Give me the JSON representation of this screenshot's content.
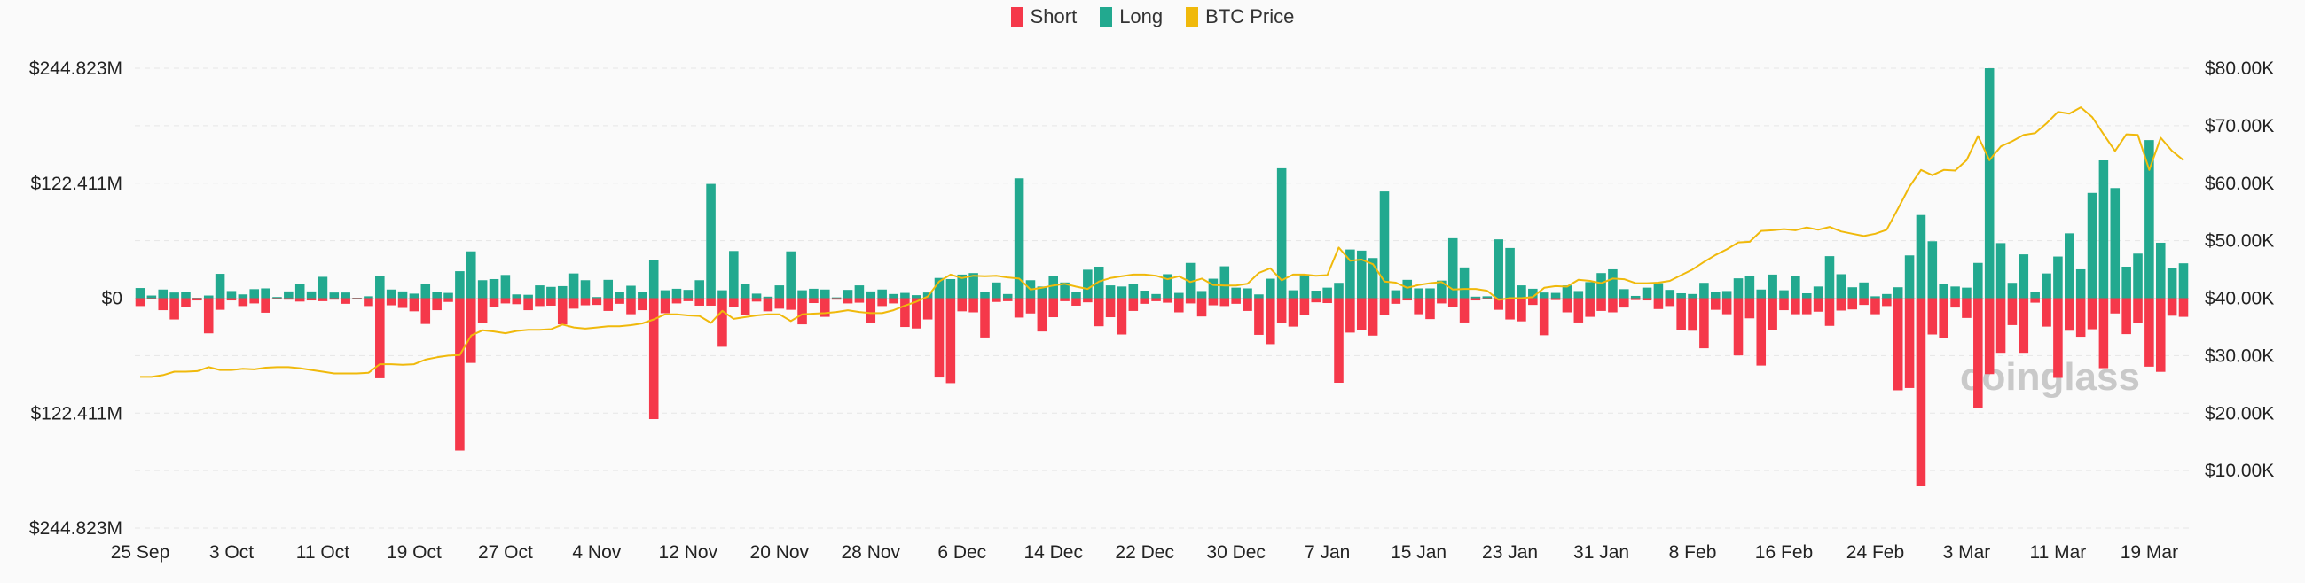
{
  "legend": [
    {
      "label": "Short",
      "color": "#f5384a"
    },
    {
      "label": "Long",
      "color": "#22a98f"
    },
    {
      "label": "BTC Price",
      "color": "#f0b90b"
    }
  ],
  "watermark": "coinglass",
  "chart_data": {
    "type": "bar",
    "title": "",
    "left_axis": {
      "labels": [
        "$244.823M",
        "$122.411M",
        "$0",
        "$122.411M",
        "$244.823M"
      ],
      "range": [
        -244.823,
        244.823
      ],
      "unit": "USD millions"
    },
    "right_axis": {
      "labels": [
        "$80.00K",
        "$70.00K",
        "$60.00K",
        "$50.00K",
        "$40.00K",
        "$30.00K",
        "$20.00K",
        "$10.00K"
      ],
      "range": [
        0,
        80
      ],
      "unit": "USD thousands"
    },
    "x_tick_labels": [
      "25 Sep",
      "3 Oct",
      "11 Oct",
      "19 Oct",
      "27 Oct",
      "4 Nov",
      "12 Nov",
      "20 Nov",
      "28 Nov",
      "6 Dec",
      "14 Dec",
      "22 Dec",
      "30 Dec",
      "7 Jan",
      "15 Jan",
      "23 Jan",
      "31 Jan",
      "8 Feb",
      "16 Feb",
      "24 Feb",
      "3 Mar",
      "11 Mar",
      "19 Mar"
    ],
    "x_tick_every_days": 8,
    "first_day": "25 Sep",
    "grid": true,
    "legend_position": "top-center",
    "series": [
      {
        "name": "Long",
        "axis": "left",
        "values": [
          10.8,
          2.8,
          9.2,
          6,
          6.4,
          0.4,
          2.8,
          25.9,
          7.6,
          4,
          9.6,
          10.4,
          1.2,
          7.2,
          15.5,
          7.2,
          22.7,
          6,
          6,
          0.4,
          2,
          23.5,
          9.2,
          7.2,
          4.8,
          14.7,
          6.4,
          5.6,
          28.7,
          49.8,
          19.1,
          20.3,
          24.7,
          4,
          3.6,
          13.6,
          12,
          12.8,
          26.3,
          19.1,
          1.2,
          19.5,
          6.4,
          13.2,
          6.8,
          40.3,
          8.4,
          10,
          8.8,
          19.1,
          121.6,
          8.4,
          50.2,
          15.1,
          4.8,
          1.6,
          13.6,
          49.8,
          8.4,
          10,
          9.2,
          0.8,
          8.8,
          13.6,
          7.2,
          9.2,
          4.4,
          5.6,
          3.2,
          6,
          21.5,
          20.3,
          25.1,
          26.7,
          6.4,
          16.7,
          4.4,
          127.6,
          19.1,
          12.4,
          23.9,
          16.7,
          6.4,
          30.3,
          33.5,
          13.6,
          12.4,
          15.1,
          8,
          4.4,
          25.5,
          5.6,
          37.5,
          7.6,
          20.7,
          33.9,
          11.2,
          10.4,
          4,
          20.7,
          138.3,
          8.4,
          25.5,
          8,
          11.2,
          16.3,
          51.8,
          50.6,
          42.7,
          113.6,
          8.4,
          19.5,
          10.4,
          10.4,
          18.7,
          63.8,
          32.7,
          1.6,
          2,
          62.6,
          53.4,
          13.6,
          10,
          6,
          5.6,
          13.6,
          7.6,
          17.1,
          26.7,
          30.7,
          9.6,
          2.4,
          11.2,
          15.9,
          8.8,
          5.2,
          4.4,
          16.3,
          6.8,
          7.6,
          21.1,
          23.5,
          9.2,
          25.1,
          8.4,
          23.5,
          5.2,
          12.4,
          44.7,
          25.5,
          11.6,
          16.7,
          2,
          4.4,
          11.6,
          45.5,
          88.5,
          60.6,
          14.8,
          12.4,
          11.2,
          37.5,
          244.8,
          58.6,
          16.3,
          46.6,
          6.4,
          26.3,
          44.3,
          69,
          30.7,
          112,
          146.7,
          117.2,
          33.5,
          47.4,
          168.3,
          59,
          31.9,
          37.1
        ]
      },
      {
        "name": "Short",
        "axis": "left",
        "values": [
          8.4,
          1.2,
          12.8,
          22.7,
          9.2,
          2.4,
          37.5,
          12.4,
          2.4,
          8.4,
          5.6,
          15.5,
          0.4,
          1.6,
          3.6,
          2.4,
          3.2,
          1.6,
          6,
          1.2,
          8.4,
          85.3,
          7.6,
          10.4,
          14,
          27.5,
          12.8,
          4,
          162.3,
          69,
          26.3,
          9.2,
          5.6,
          6.4,
          12.8,
          8.4,
          8,
          27.9,
          11.2,
          7.6,
          7.2,
          13.6,
          6,
          17.1,
          12.8,
          128.8,
          16,
          5.6,
          3.2,
          8,
          8,
          51.8,
          9.2,
          17.9,
          3.6,
          14,
          11.2,
          12.4,
          27.9,
          5.2,
          19.9,
          1.6,
          5.6,
          4.8,
          26.3,
          8.4,
          5.6,
          30.7,
          32.3,
          22.7,
          84.5,
          90.5,
          14,
          15.1,
          41.9,
          4,
          3.2,
          20.7,
          16.3,
          35.5,
          20.3,
          3.2,
          8,
          4.4,
          29.9,
          20.3,
          38.7,
          13.6,
          6,
          3.2,
          4.8,
          15.1,
          5.6,
          19.5,
          7.6,
          8.4,
          6,
          13.6,
          39.1,
          49,
          26.7,
          30.3,
          17.5,
          4.4,
          5.2,
          90.1,
          36.7,
          33.9,
          39.9,
          17.5,
          6,
          2.4,
          17.1,
          22.3,
          5.6,
          9.2,
          25.9,
          2.4,
          1.2,
          12.4,
          22.7,
          24.7,
          7.2,
          39.5,
          2,
          15.1,
          25.9,
          19.9,
          13.6,
          15.1,
          10,
          2,
          2.4,
          11.6,
          8.4,
          33.5,
          34.7,
          53.4,
          12.4,
          17.1,
          61,
          21.5,
          71.8,
          33.5,
          12.8,
          17.1,
          17.1,
          14.4,
          29.5,
          13.2,
          12,
          7.2,
          17.1,
          8.4,
          98.1,
          95.7,
          200.1,
          38.7,
          42.7,
          10,
          21.1,
          117.2,
          80.9,
          58.2,
          28.7,
          58.2,
          4.8,
          30.3,
          84.9,
          34.7,
          41.1,
          33.1,
          74.6,
          16.3,
          38.3,
          26.3,
          73,
          78.5,
          18.7,
          19.9
        ]
      },
      {
        "name": "BTC Price",
        "axis": "right",
        "type": "line",
        "values": [
          26.3,
          26.3,
          26.6,
          27.2,
          27.2,
          27.3,
          28.0,
          27.5,
          27.5,
          27.7,
          27.6,
          27.9,
          28.0,
          28.0,
          27.8,
          27.5,
          27.2,
          26.9,
          26.9,
          26.9,
          27.0,
          28.5,
          28.5,
          28.4,
          28.5,
          29.3,
          29.7,
          30.0,
          30.1,
          33.5,
          34.4,
          34.2,
          33.9,
          34.3,
          34.5,
          34.5,
          34.6,
          35.4,
          34.9,
          34.7,
          34.9,
          35.1,
          35.1,
          35.3,
          35.6,
          36.3,
          37.2,
          37.2,
          37.0,
          36.9,
          35.7,
          37.8,
          36.4,
          36.7,
          37.0,
          37.2,
          37.2,
          36.0,
          37.2,
          37.3,
          37.4,
          37.6,
          37.9,
          37.6,
          37.4,
          37.4,
          37.9,
          38.7,
          39.4,
          40.3,
          42.9,
          44.1,
          43.5,
          43.9,
          43.8,
          43.9,
          43.6,
          43.4,
          41.5,
          41.8,
          42.2,
          42.5,
          42.0,
          41.6,
          42.9,
          43.5,
          43.8,
          44.1,
          44.1,
          43.9,
          43.3,
          43.8,
          42.8,
          43.4,
          42.3,
          42.2,
          42.2,
          42.5,
          44.4,
          45.2,
          43.1,
          44.1,
          44.1,
          43.9,
          44.0,
          48.8,
          46.5,
          46.7,
          45.9,
          42.9,
          42.7,
          41.8,
          42.3,
          42.6,
          42.8,
          41.5,
          41.6,
          41.6,
          41.3,
          39.7,
          40.0,
          40.0,
          40.2,
          41.8,
          42.1,
          42.0,
          43.2,
          43.0,
          42.6,
          43.4,
          43.3,
          42.6,
          42.6,
          42.7,
          43.0,
          44.0,
          45.0,
          46.3,
          47.5,
          48.5,
          49.7,
          49.8,
          51.7,
          51.8,
          52.0,
          51.8,
          52.3,
          51.9,
          52.4,
          51.6,
          51.2,
          50.8,
          51.2,
          51.9,
          55.6,
          59.4,
          62.3,
          61.4,
          62.3,
          62.2,
          64.0,
          68.2,
          64.0,
          66.4,
          67.3,
          68.4,
          68.7,
          70.4,
          72.4,
          72.1,
          73.2,
          71.5,
          68.5,
          65.6,
          68.5,
          68.4,
          62.3,
          67.9,
          65.6,
          64.0
        ]
      }
    ]
  }
}
